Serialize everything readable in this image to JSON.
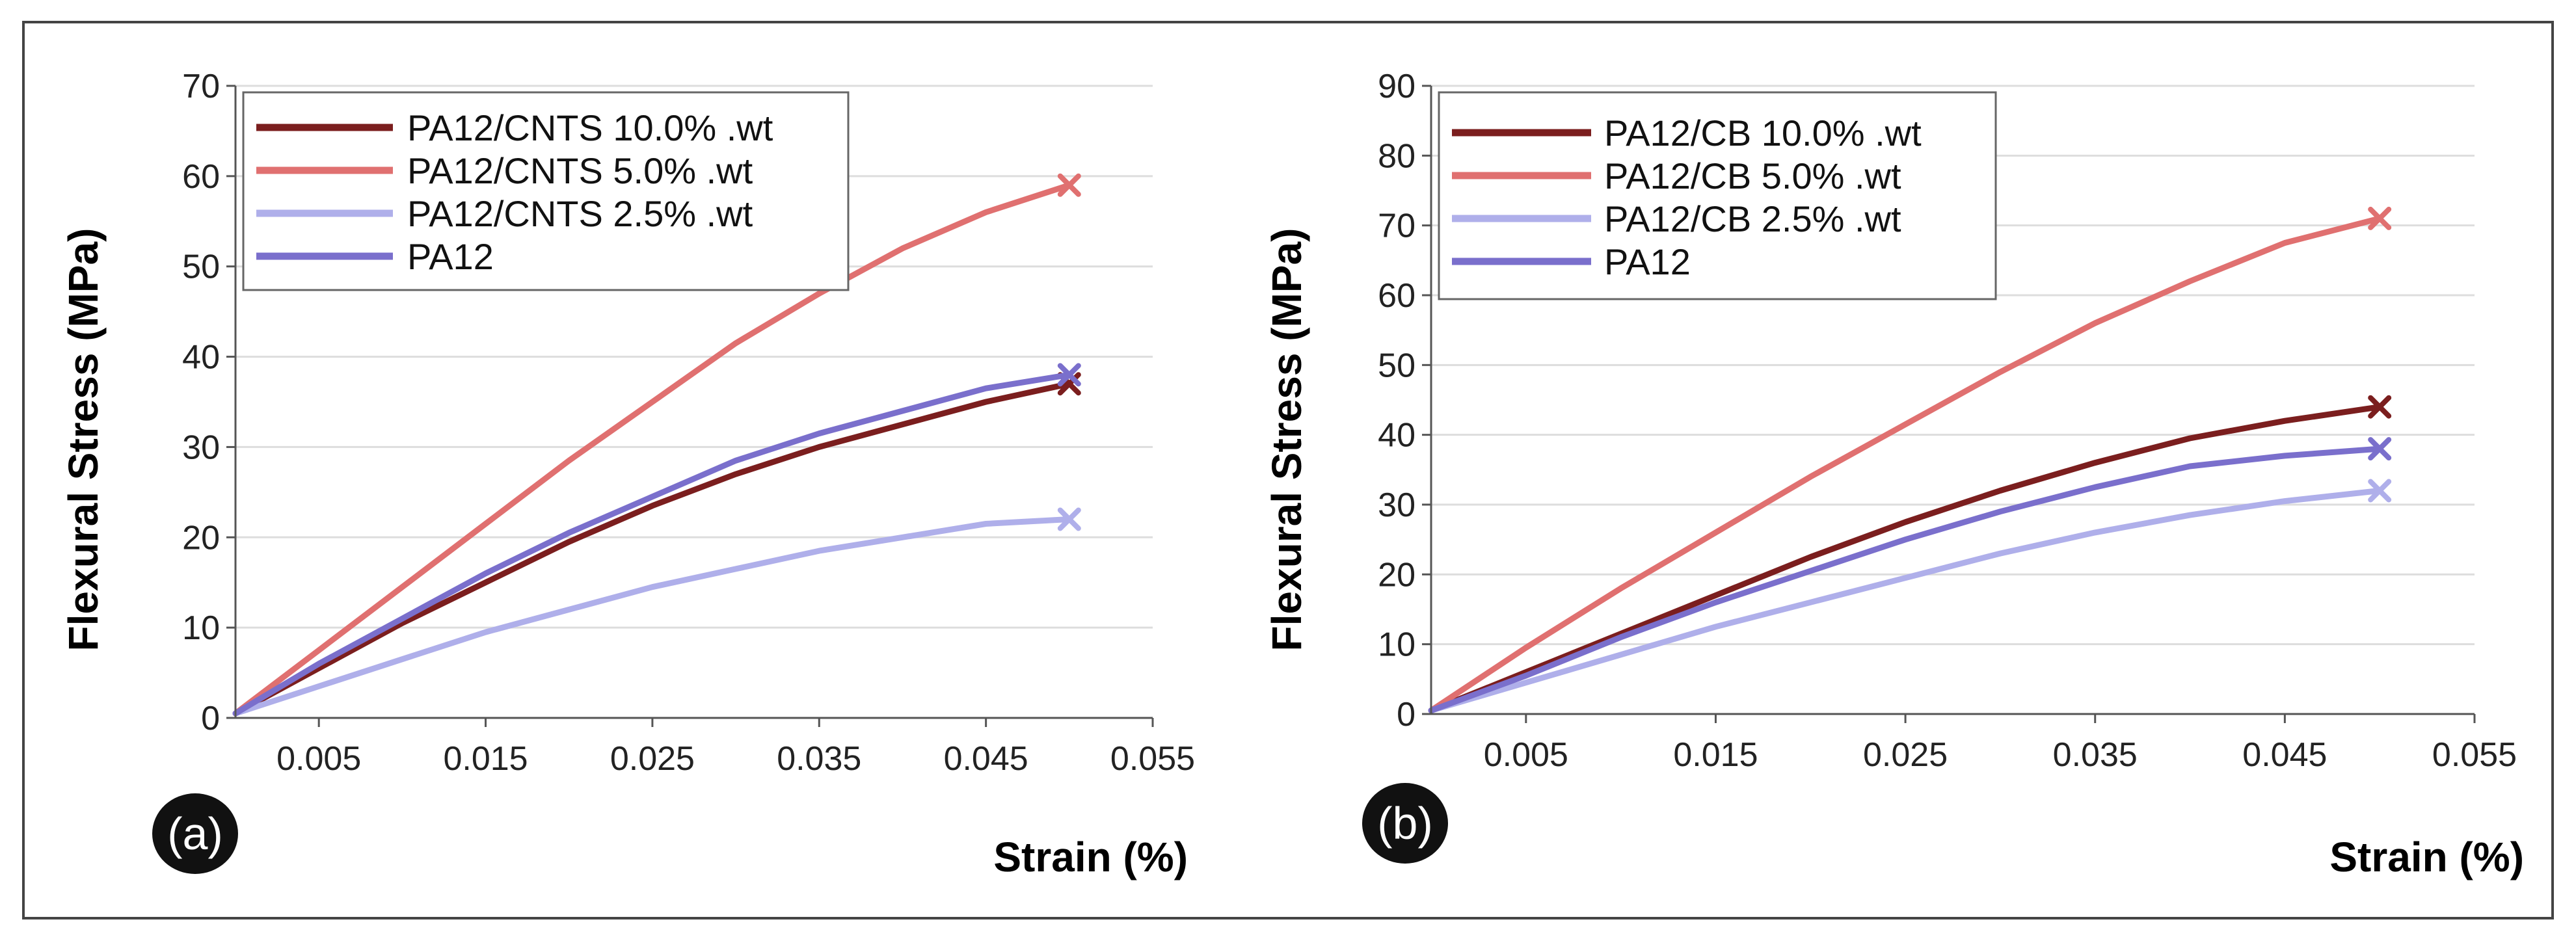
{
  "chart_data": [
    {
      "type": "line",
      "panel_label": "(a)",
      "xlabel": "Strain (%)",
      "ylabel": "Flexural Stress (MPa)",
      "xlim": [
        0.0,
        0.055
      ],
      "ylim": [
        0,
        70
      ],
      "x_ticks": [
        0.005,
        0.015,
        0.025,
        0.035,
        0.045,
        0.055
      ],
      "x_tick_labels": [
        "0.005",
        "0.015",
        "0.025",
        "0.035",
        "0.045",
        "0.055"
      ],
      "y_ticks": [
        0,
        10,
        20,
        30,
        40,
        50,
        60,
        70
      ],
      "y_tick_labels": [
        "0",
        "10",
        "20",
        "30",
        "40",
        "50",
        "60",
        "70"
      ],
      "grid": "horizontal",
      "legend_position": "top-left",
      "series": [
        {
          "name": "PA12/CNTS 10.0% .wt",
          "color": "#7B1E1E",
          "x": [
            0.0,
            0.005,
            0.01,
            0.015,
            0.02,
            0.025,
            0.03,
            0.035,
            0.04,
            0.045,
            0.05
          ],
          "y": [
            0.5,
            5.5,
            10.5,
            15.0,
            19.5,
            23.5,
            27.0,
            30.0,
            32.5,
            35.0,
            37.0
          ]
        },
        {
          "name": "PA12/CNTS 5.0% .wt",
          "color": "#E07070",
          "x": [
            0.0,
            0.005,
            0.01,
            0.015,
            0.02,
            0.025,
            0.03,
            0.035,
            0.04,
            0.045,
            0.05
          ],
          "y": [
            0.5,
            7.5,
            14.5,
            21.5,
            28.5,
            35.0,
            41.5,
            47.0,
            52.0,
            56.0,
            59.0
          ]
        },
        {
          "name": "PA12/CNTS 2.5% .wt",
          "color": "#AFAFEA",
          "x": [
            0.0,
            0.005,
            0.01,
            0.015,
            0.02,
            0.025,
            0.03,
            0.035,
            0.04,
            0.045,
            0.05
          ],
          "y": [
            0.5,
            3.5,
            6.5,
            9.5,
            12.0,
            14.5,
            16.5,
            18.5,
            20.0,
            21.5,
            22.0
          ]
        },
        {
          "name": "PA12",
          "color": "#7A6FCC",
          "x": [
            0.0,
            0.005,
            0.01,
            0.015,
            0.02,
            0.025,
            0.03,
            0.035,
            0.04,
            0.045,
            0.05
          ],
          "y": [
            0.5,
            6.0,
            11.0,
            16.0,
            20.5,
            24.5,
            28.5,
            31.5,
            34.0,
            36.5,
            38.0
          ]
        }
      ]
    },
    {
      "type": "line",
      "panel_label": "(b)",
      "xlabel": "Strain (%)",
      "ylabel": "Flexural Stress (MPa)",
      "xlim": [
        0.0,
        0.055
      ],
      "ylim": [
        0,
        90
      ],
      "x_ticks": [
        0.005,
        0.015,
        0.025,
        0.035,
        0.045,
        0.055
      ],
      "x_tick_labels": [
        "0.005",
        "0.015",
        "0.025",
        "0.035",
        "0.045",
        "0.055"
      ],
      "y_ticks": [
        0,
        10,
        20,
        30,
        40,
        50,
        60,
        70,
        80,
        90
      ],
      "y_tick_labels": [
        "0",
        "10",
        "20",
        "30",
        "40",
        "50",
        "60",
        "70",
        "80",
        "90"
      ],
      "grid": "horizontal",
      "legend_position": "top-left",
      "series": [
        {
          "name": "PA12/CB 10.0% .wt",
          "color": "#7B1E1E",
          "x": [
            0.0,
            0.005,
            0.01,
            0.015,
            0.02,
            0.025,
            0.03,
            0.035,
            0.04,
            0.045,
            0.05
          ],
          "y": [
            0.5,
            6.0,
            11.5,
            17.0,
            22.5,
            27.5,
            32.0,
            36.0,
            39.5,
            42.0,
            44.0
          ]
        },
        {
          "name": "PA12/CB 5.0% .wt",
          "color": "#E07070",
          "x": [
            0.0,
            0.005,
            0.01,
            0.015,
            0.02,
            0.025,
            0.03,
            0.035,
            0.04,
            0.045,
            0.05
          ],
          "y": [
            0.5,
            9.5,
            18.0,
            26.0,
            34.0,
            41.5,
            49.0,
            56.0,
            62.0,
            67.5,
            71.0
          ]
        },
        {
          "name": "PA12/CB 2.5% .wt",
          "color": "#AFAFEA",
          "x": [
            0.0,
            0.005,
            0.01,
            0.015,
            0.02,
            0.025,
            0.03,
            0.035,
            0.04,
            0.045,
            0.05
          ],
          "y": [
            0.5,
            4.5,
            8.5,
            12.5,
            16.0,
            19.5,
            23.0,
            26.0,
            28.5,
            30.5,
            32.0
          ]
        },
        {
          "name": "PA12",
          "color": "#7A6FCC",
          "x": [
            0.0,
            0.005,
            0.01,
            0.015,
            0.02,
            0.025,
            0.03,
            0.035,
            0.04,
            0.045,
            0.05
          ],
          "y": [
            0.5,
            5.5,
            11.0,
            16.0,
            20.5,
            25.0,
            29.0,
            32.5,
            35.5,
            37.0,
            38.0
          ]
        }
      ]
    }
  ]
}
